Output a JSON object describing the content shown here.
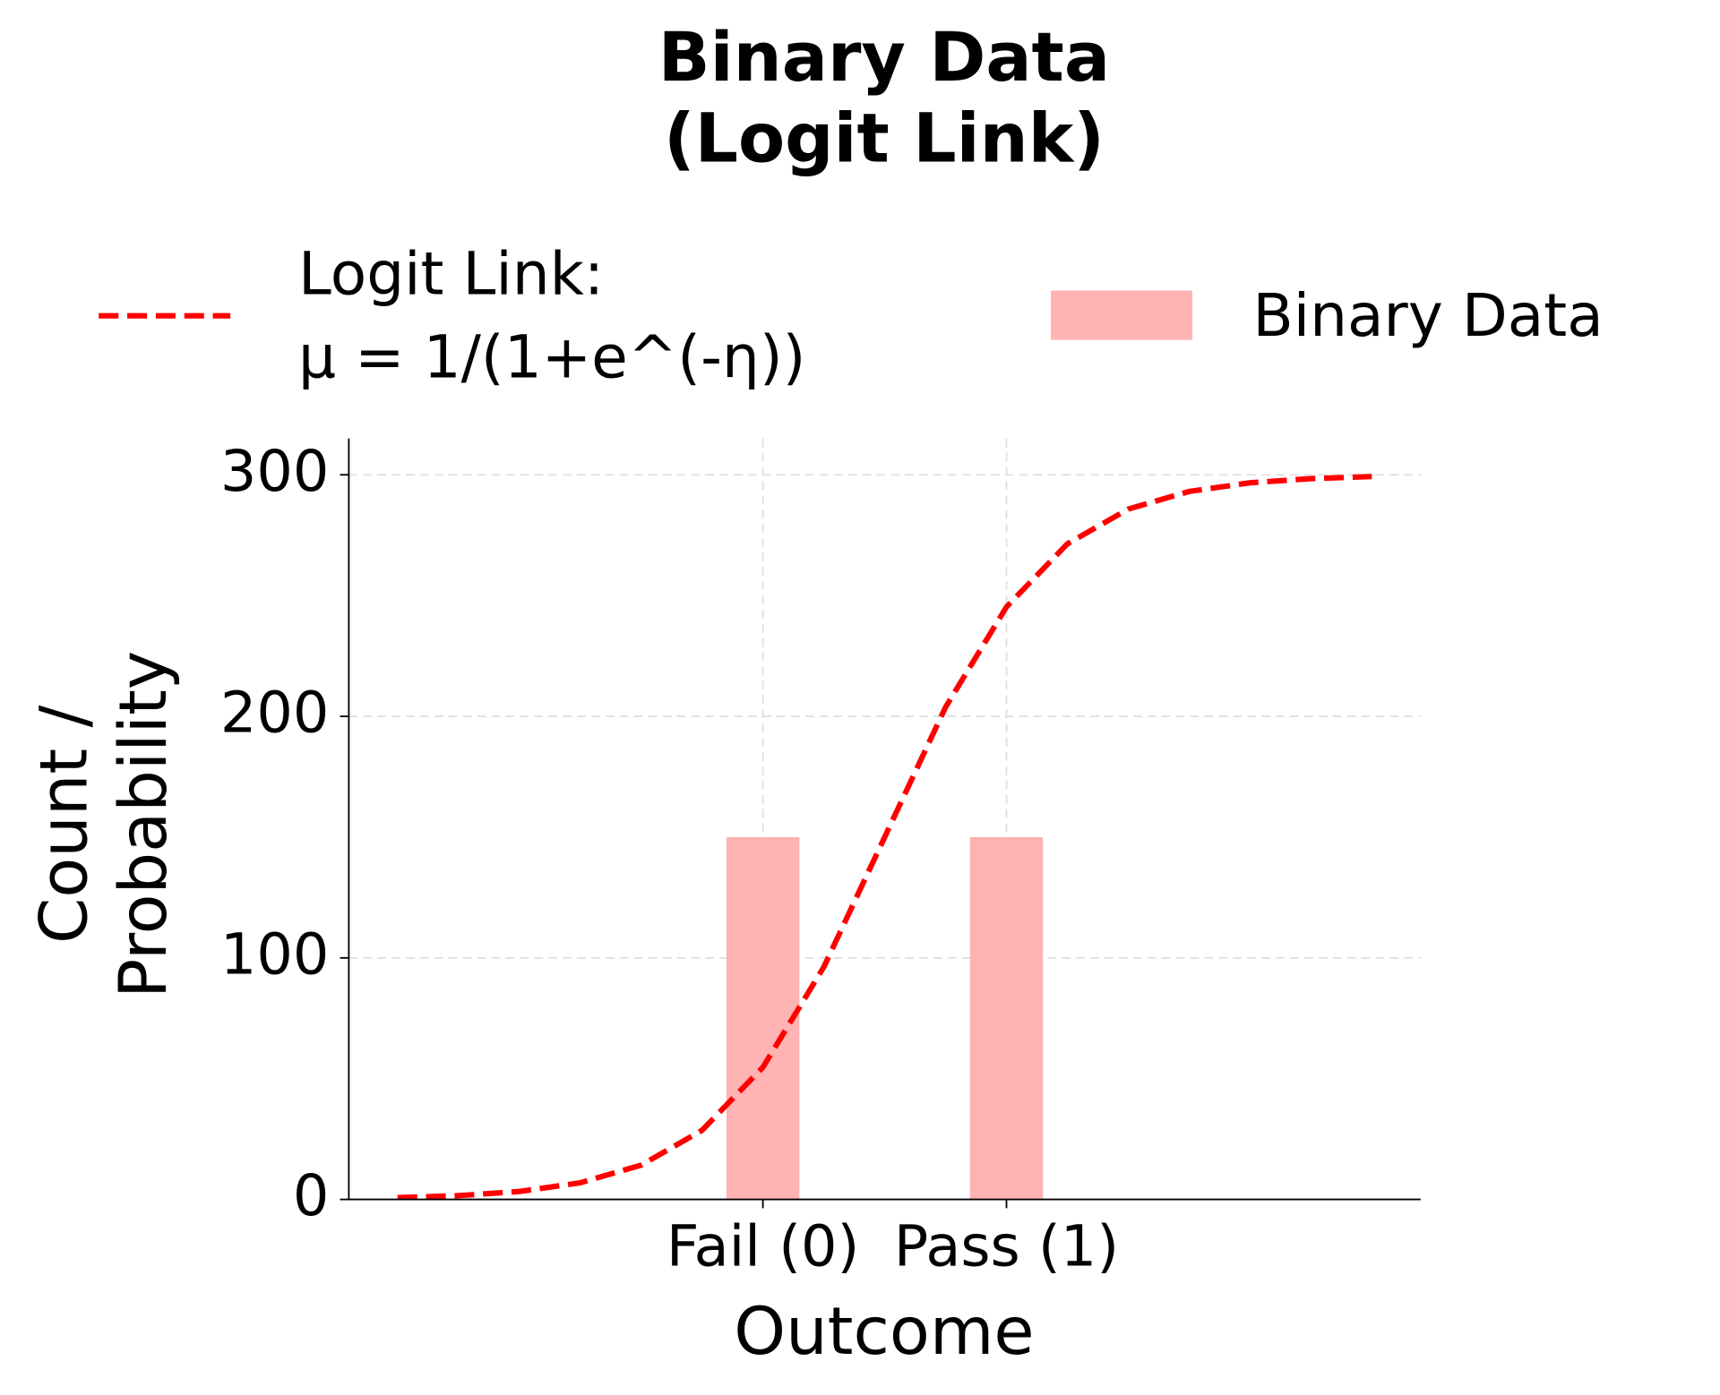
{
  "chart_data": {
    "type": "bar",
    "title": "Binary Data\n(Logit Link)",
    "xlabel": "Outcome",
    "ylabel": "Count /\nProbability",
    "xlim": [
      -1.7,
      2.7
    ],
    "ylim": [
      0,
      315
    ],
    "xticks": [
      {
        "value": 0,
        "label": "Fail (0)"
      },
      {
        "value": 1,
        "label": "Pass (1)"
      }
    ],
    "yticks": [
      0,
      100,
      200,
      300
    ],
    "grid": true,
    "legend": "top",
    "series": [
      {
        "type": "line",
        "name": "Logit Link:\nμ = 1/(1+e^(-η))",
        "color": "#ff0000",
        "style": "dashed",
        "x": [
          -1.5,
          -1.25,
          -1.0,
          -0.75,
          -0.5,
          -0.25,
          0,
          0.25,
          0.5,
          0.75,
          1.0,
          1.25,
          1.5,
          1.75,
          2.0,
          2.25,
          2.5
        ],
        "values": [
          0.74,
          1.57,
          3.3,
          6.89,
          14.2,
          28.6,
          54.7,
          96.2,
          150,
          203.8,
          245.3,
          271.4,
          285.8,
          293.1,
          296.7,
          298.4,
          299.3
        ]
      },
      {
        "type": "bar",
        "name": "Binary Data",
        "color": "#ffb3b3",
        "x": [
          0,
          1
        ],
        "values": [
          150,
          150
        ]
      }
    ]
  }
}
